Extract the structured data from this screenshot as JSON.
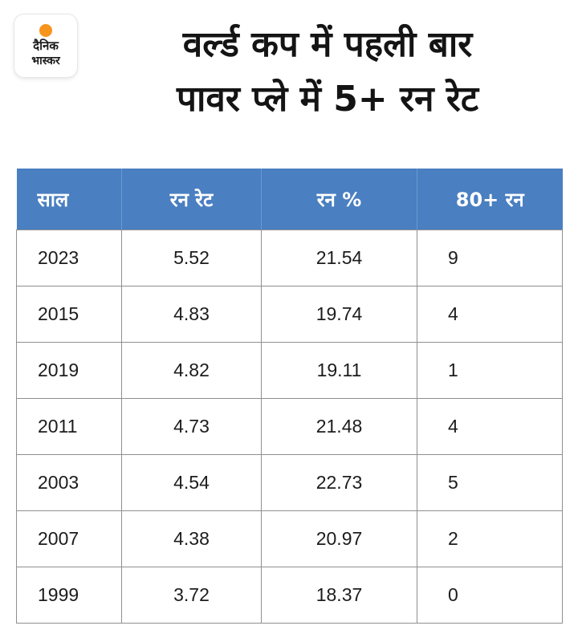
{
  "brand": {
    "line1": "दैनिक",
    "line2": "भास्कर",
    "accent_color": "#f7941d"
  },
  "headline": {
    "line1": "वर्ल्ड कप में पहली बार",
    "line2": "पावर प्ले में 5+ रन रेट"
  },
  "table": {
    "header_color": "#4a7fc1",
    "columns": [
      "साल",
      "रन रेट",
      "रन %",
      "80+ रन"
    ],
    "rows": [
      [
        "2023",
        "5.52",
        "21.54",
        "9"
      ],
      [
        "2015",
        "4.83",
        "19.74",
        "4"
      ],
      [
        "2019",
        "4.82",
        "19.11",
        "1"
      ],
      [
        "2011",
        "4.73",
        "21.48",
        "4"
      ],
      [
        "2003",
        "4.54",
        "22.73",
        "5"
      ],
      [
        "2007",
        "4.38",
        "20.97",
        "2"
      ],
      [
        "1999",
        "3.72",
        "18.37",
        "0"
      ]
    ]
  }
}
